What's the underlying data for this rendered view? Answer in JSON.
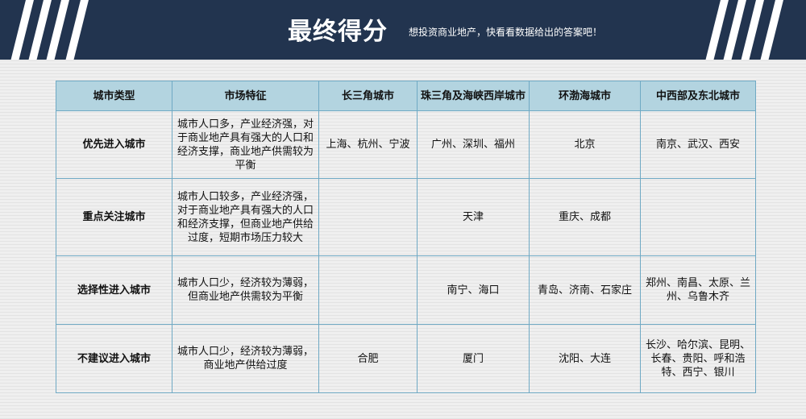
{
  "header": {
    "title": "最终得分",
    "subtitle": "想投资商业地产，快看看数据给出的答案吧！"
  },
  "colors": {
    "banner": "#22344f",
    "table_header": "#b3d4e0",
    "border": "#6fa9c4"
  },
  "table": {
    "columns": [
      "城市类型",
      "市场特征",
      "长三角城市",
      "珠三角及海峡西岸城市",
      "环渤海城市",
      "中西部及东北城市"
    ],
    "rows": [
      {
        "type": "优先进入城市",
        "feature": "城市人口多，产业经济强，对于商业地产具有强大的人口和经济支撑，商业地产供需较为平衡",
        "yrd": "上海、杭州、宁波",
        "prd": "广州、深圳、福州",
        "bohai": "北京",
        "central": "南京、武汉、西安"
      },
      {
        "type": "重点关注城市",
        "feature": "城市人口较多，产业经济强，对于商业地产具有强大的人口和经济支撑，但商业地产供给过度，短期市场压力较大",
        "yrd": "",
        "prd": "天津",
        "bohai": "重庆、成都",
        "central": ""
      },
      {
        "type": "选择性进入城市",
        "feature": "城市人口少，经济较为薄弱，但商业地产供需较为平衡",
        "yrd": "",
        "prd": "南宁、海口",
        "bohai": "青岛、济南、石家庄",
        "central": "郑州、南昌、太原、兰州、乌鲁木齐"
      },
      {
        "type": "不建议进入城市",
        "feature": "城市人口少，经济较为薄弱，商业地产供给过度",
        "yrd": "合肥",
        "prd": "厦门",
        "bohai": "沈阳、大连",
        "central": "长沙、哈尔滨、昆明、长春、贵阳、呼和浩特、西宁、银川"
      }
    ]
  }
}
